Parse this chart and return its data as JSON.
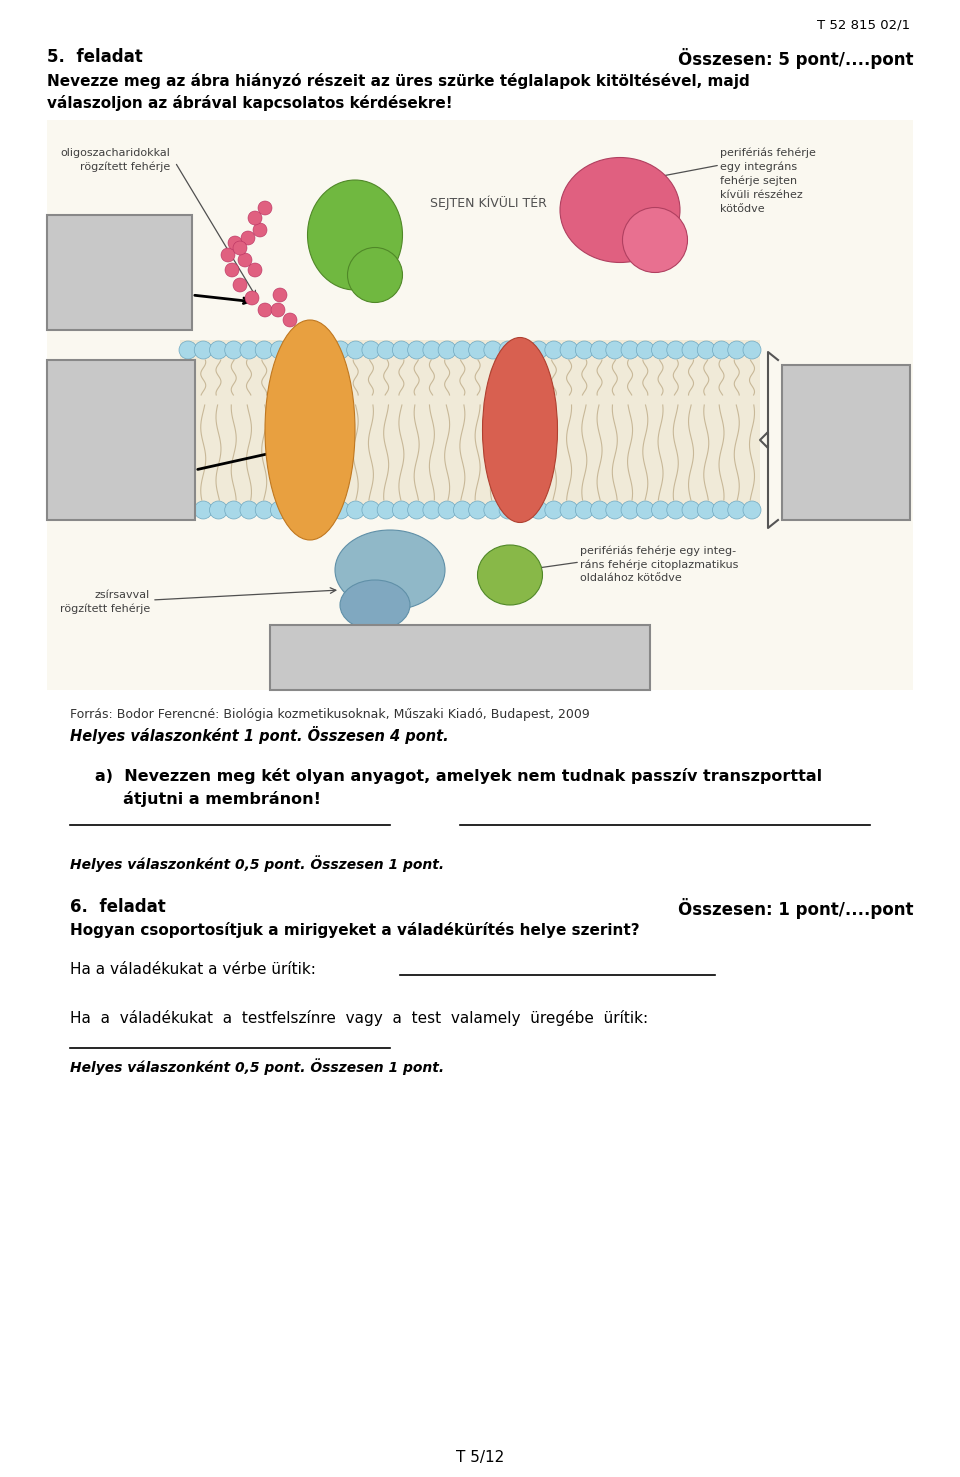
{
  "page_id_top": "T 52 815 02/1",
  "page_id_bottom": "T 5/12",
  "section5_title": "5.  feladat",
  "section5_score": "Összesen: 5 pont/....pont",
  "section5_intro_line1": "Nevezze meg az ábra hiányzó részeit az üres szürke téglalapok kitöltésével, majd",
  "section5_intro_line2": "válaszoljon az ábrával kapcsolatos kérdésekre!",
  "source_text": "Forrás: Bodor Ferencné: Biológia kozmetikusoknak, Műszaki Kiadó, Budapest, 2009",
  "score_4pt": "Helyes válaszonként 1 pont. Összesen 4 pont.",
  "question_a_line1": "a)  Nevezzen meg két olyan anyagot, amelyek nem tudnak passzív transzporttal",
  "question_a_line2": "     átjutni a membránon!",
  "score_05pt_1": "Helyes válaszonként 0,5 pont. Összesen 1 pont.",
  "section6_title": "6.  feladat",
  "section6_score": "Összesen: 1 pont/....pont",
  "section6_intro": "Hogyan csoportosítjuk a mirigyeket a váladékürítés helye szerint?",
  "q6_line1": "Ha a váladékukat a vérbe ürítik:",
  "q6_line2": "Ha  a  váladékukat  a  testfelszínre  vagy  a  test  valamely  üregébe  ürítik:",
  "score_05pt_2": "Helyes válaszonként 0,5 pont. Összesen 1 pont.",
  "bg_color": "#ffffff",
  "text_color": "#000000",
  "gray_box_color": "#c8c8c8",
  "diag_bg_color": "#faf8f0",
  "membrane_color": "#e8e0c8",
  "lipid_head_color": "#a8d8e8",
  "orange_protein_color": "#e8a040",
  "red_protein_color": "#d86050",
  "green_protein_color": "#70b840",
  "pink_protein_color": "#e06080",
  "blue_protein_color": "#90b8c8",
  "oligo_color": "#e06080",
  "annotation_color": "#404040"
}
